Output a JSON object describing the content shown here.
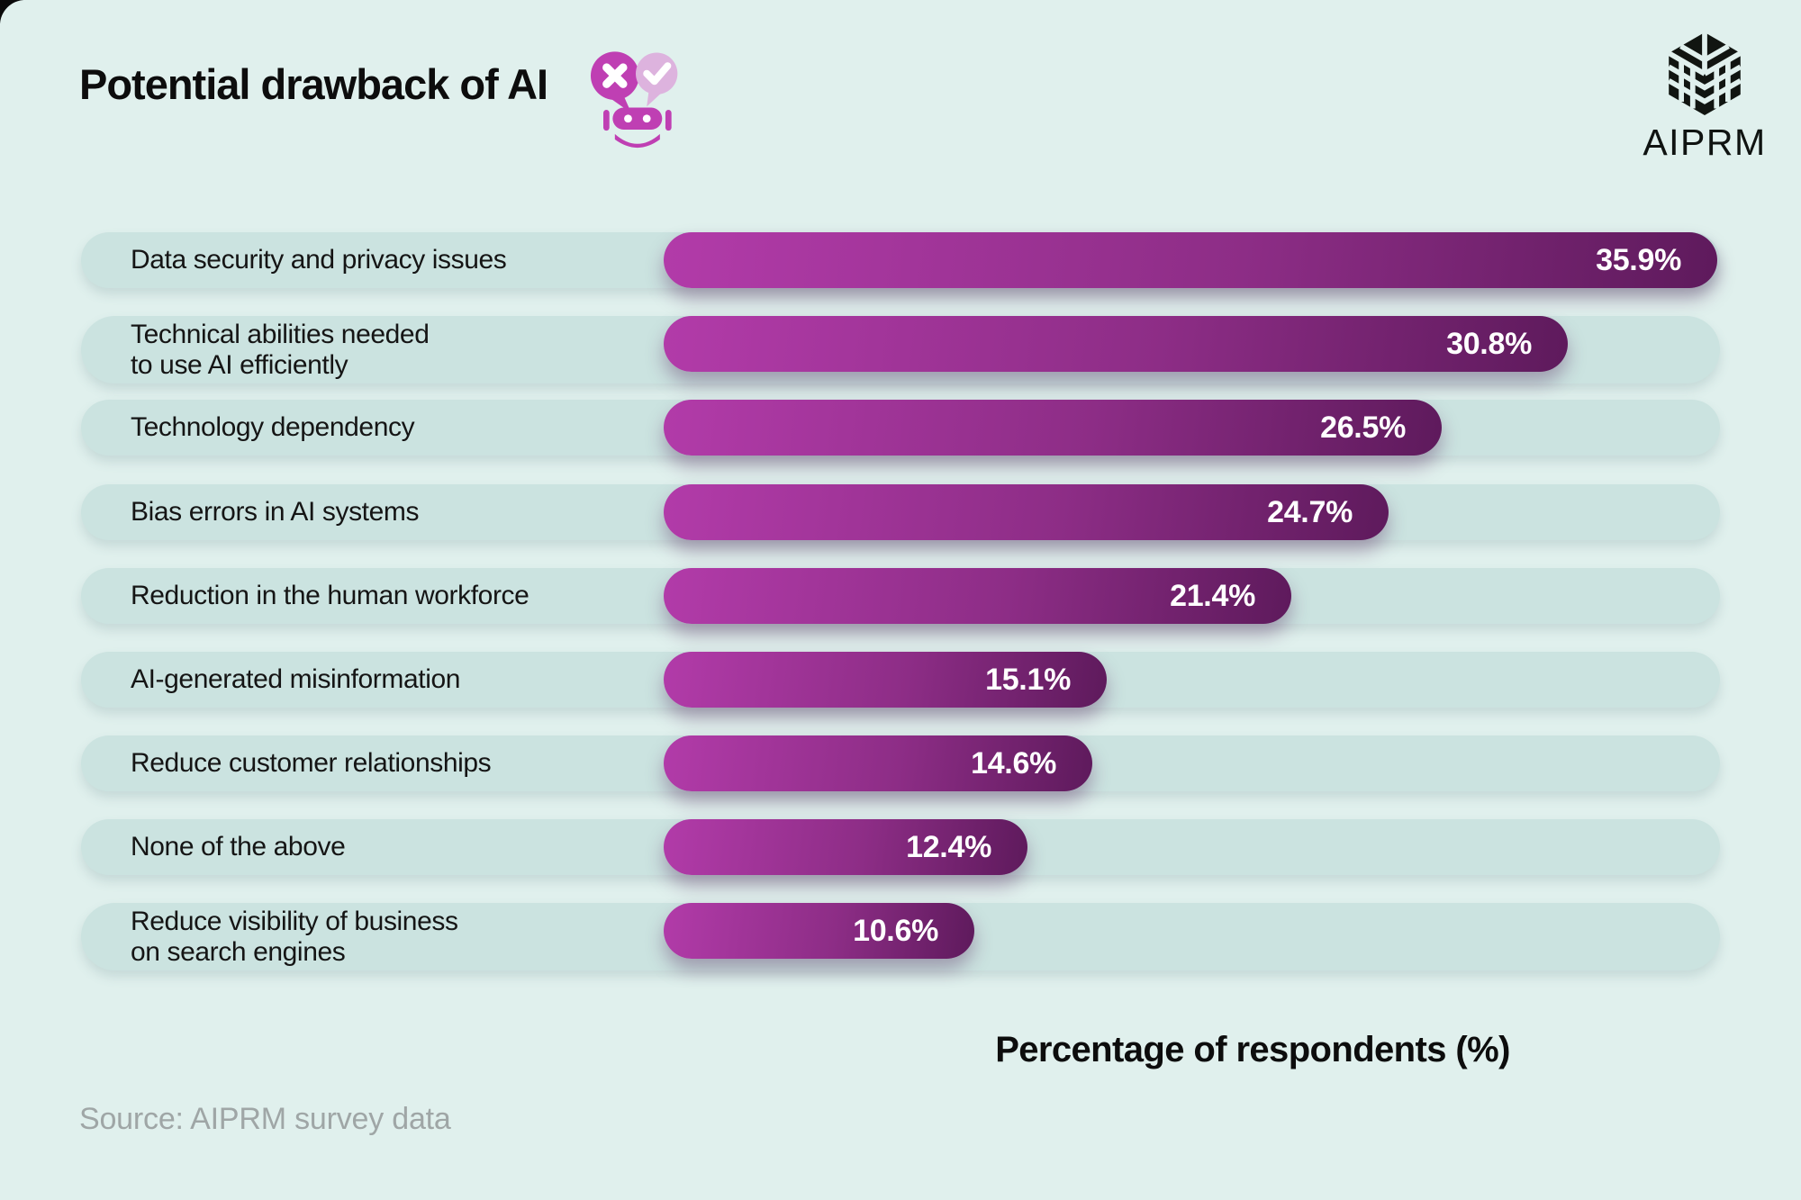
{
  "page": {
    "title": "Potential drawback of AI",
    "brand": "AIPRM",
    "source": "Source: AIPRM survey data",
    "colors": {
      "background": "#e0f0ed",
      "row_track": "#cbe3e0",
      "accent_magenta": "#bf3fb3",
      "accent_pink": "#ddb3de",
      "logo_black": "#111511",
      "bar_gradient_start": "#b23ba9",
      "bar_gradient_end": "#5e1a5c",
      "value_text": "#ffffff",
      "label_text": "#151515"
    },
    "icons": [
      "robot-chat-icon",
      "x-speech-bubble-icon",
      "check-speech-bubble-icon",
      "aiprm-cube-logo-icon"
    ]
  },
  "chart_data": {
    "type": "bar",
    "orientation": "horizontal",
    "title": "Potential drawback of AI",
    "xlabel": "Percentage of respondents (%)",
    "xlim": [
      0,
      35.9
    ],
    "grid": false,
    "legend": false,
    "categories": [
      "Data security and privacy issues",
      "Technical abilities needed\nto use AI efficiently",
      "Technology dependency",
      "Bias errors in AI systems",
      "Reduction in the human workforce",
      "AI-generated misinformation",
      "Reduce customer relationships",
      "None of the above",
      "Reduce visibility of business\non search engines"
    ],
    "values": [
      35.9,
      30.8,
      26.5,
      24.7,
      21.4,
      15.1,
      14.6,
      12.4,
      10.6
    ],
    "value_labels": [
      "35.9%",
      "30.8%",
      "26.5%",
      "24.7%",
      "21.4%",
      "15.1%",
      "14.6%",
      "12.4%",
      "10.6%"
    ]
  }
}
